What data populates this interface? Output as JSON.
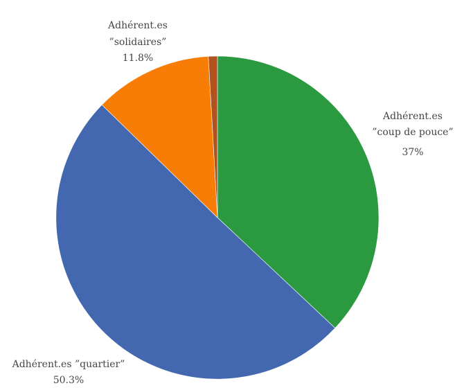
{
  "chart_data": {
    "type": "pie",
    "title": "",
    "start_angle_deg": 0,
    "direction": "clockwise",
    "slices": [
      {
        "id": "coup",
        "label": [
          "Adhérent.es",
          "”coup de pouce”"
        ],
        "value_label": "37%",
        "value": 37.0,
        "color": "#2b9940"
      },
      {
        "id": "quartier",
        "label": [
          "Adhérent.es ”quartier”"
        ],
        "value_label": "50.3%",
        "value": 50.3,
        "color": "#4468b0"
      },
      {
        "id": "solidaires",
        "label": [
          "Adhérent.es",
          "”solidaires”"
        ],
        "value_label": "11.8%",
        "value": 11.8,
        "color": "#f77d07"
      },
      {
        "id": "other",
        "label": [],
        "value_label": "",
        "value": 0.9,
        "color": "#b05320"
      }
    ]
  }
}
